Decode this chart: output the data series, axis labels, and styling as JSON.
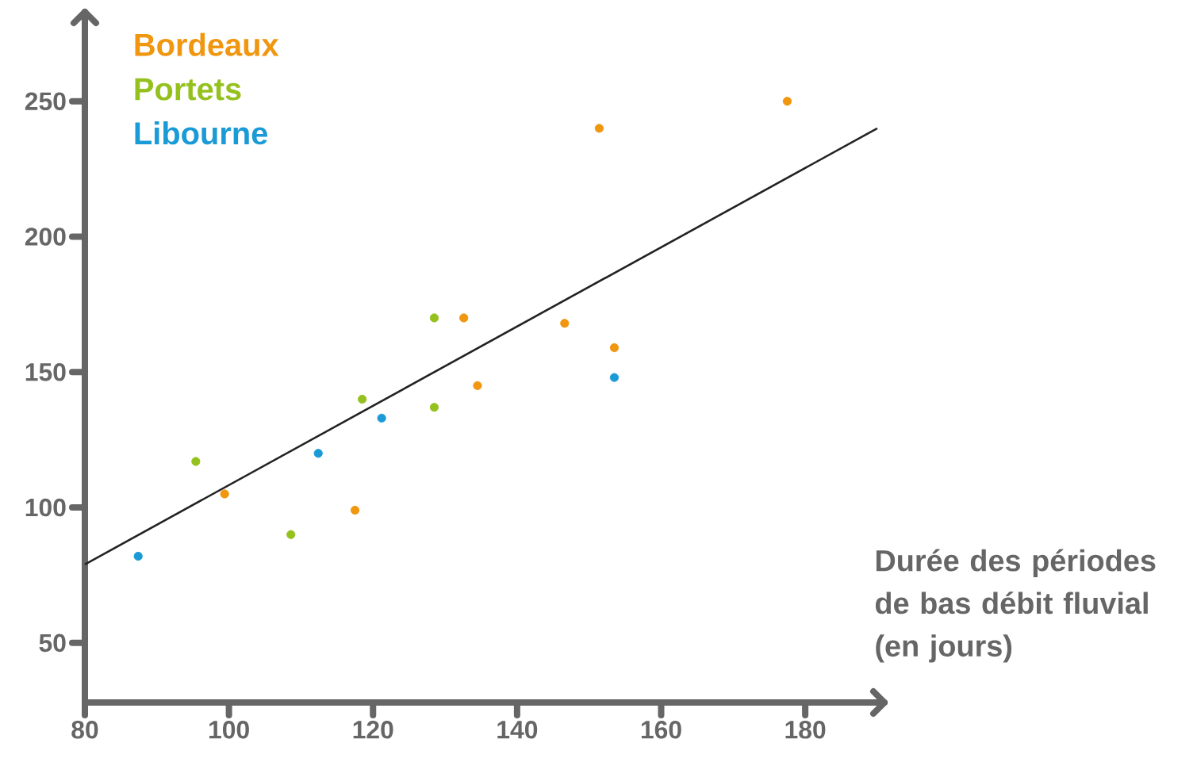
{
  "chart_data": {
    "type": "scatter",
    "xlabel": "Durée des périodes de bas débit fluvial (en jours)",
    "xlim": [
      80,
      191
    ],
    "ylim": [
      28,
      283
    ],
    "xticks": [
      80,
      100,
      120,
      140,
      160,
      180
    ],
    "yticks": [
      50,
      100,
      150,
      200,
      250
    ],
    "legend": "top left",
    "series": [
      {
        "name": "Bordeaux",
        "marker": "circle",
        "color": "#f0960f",
        "x": [
          99.4,
          117.5,
          132.6,
          134.5,
          146.6,
          151.4,
          153.5,
          177.5
        ],
        "values": [
          105,
          99,
          170,
          145,
          168,
          240,
          159,
          250
        ]
      },
      {
        "name": "Portets",
        "marker": "circle",
        "color": "#95c11f",
        "x": [
          95.4,
          108.6,
          118.5,
          128.5,
          128.5
        ],
        "values": [
          117,
          90,
          140,
          170,
          137
        ]
      },
      {
        "name": "Libourne",
        "marker": "circle",
        "color": "#1a9ad6",
        "x": [
          87.4,
          112.4,
          121.2,
          153.5
        ],
        "values": [
          82,
          120,
          133,
          148
        ]
      },
      {
        "type": "line",
        "marker": "none",
        "color": "#222222",
        "x": [
          80,
          190
        ],
        "values": [
          79,
          240
        ]
      }
    ]
  }
}
